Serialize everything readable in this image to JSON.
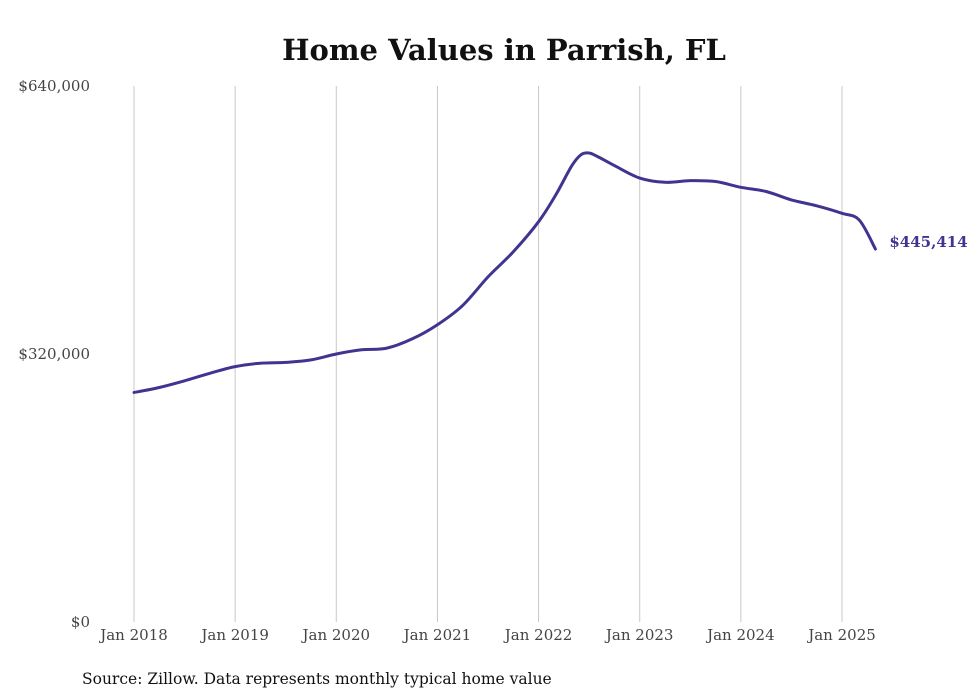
{
  "chart_data": {
    "type": "line",
    "title": "Home Values in Parrish, FL",
    "xlabel": "",
    "ylabel": "",
    "ylim": [
      0,
      640000
    ],
    "y_ticks": [
      {
        "value": 0,
        "label": "$0"
      },
      {
        "value": 320000,
        "label": "$320,000"
      },
      {
        "value": 640000,
        "label": "$640,000"
      }
    ],
    "x_ticks": [
      {
        "value": 2018.0,
        "label": "Jan 2018"
      },
      {
        "value": 2019.0,
        "label": "Jan 2019"
      },
      {
        "value": 2020.0,
        "label": "Jan 2020"
      },
      {
        "value": 2021.0,
        "label": "Jan 2021"
      },
      {
        "value": 2022.0,
        "label": "Jan 2022"
      },
      {
        "value": 2023.0,
        "label": "Jan 2023"
      },
      {
        "value": 2024.0,
        "label": "Jan 2024"
      },
      {
        "value": 2025.0,
        "label": "Jan 2025"
      }
    ],
    "vertical_grid": true,
    "line_color": "#3f3590",
    "end_label": "$445,414",
    "series": [
      {
        "x": [
          2018.0,
          2018.25,
          2018.5,
          2018.75,
          2019.0,
          2019.25,
          2019.5,
          2019.75,
          2020.0,
          2020.25,
          2020.5,
          2020.75,
          2021.0,
          2021.25,
          2021.5,
          2021.75,
          2022.0,
          2022.17,
          2022.33,
          2022.42,
          2022.5,
          2022.58,
          2022.75,
          2023.0,
          2023.25,
          2023.5,
          2023.75,
          2024.0,
          2024.25,
          2024.5,
          2024.75,
          2025.0,
          2025.17,
          2025.33
        ],
        "y": [
          274000,
          280000,
          288000,
          297000,
          305000,
          309000,
          310000,
          313000,
          320000,
          325000,
          327000,
          338000,
          355000,
          378000,
          412000,
          442000,
          478000,
          510000,
          545000,
          558000,
          560000,
          556000,
          545000,
          530000,
          525000,
          527000,
          526000,
          519000,
          514000,
          504000,
          497000,
          488000,
          480000,
          445414
        ]
      }
    ],
    "source": "Source: Zillow. Data represents monthly typical home value"
  }
}
